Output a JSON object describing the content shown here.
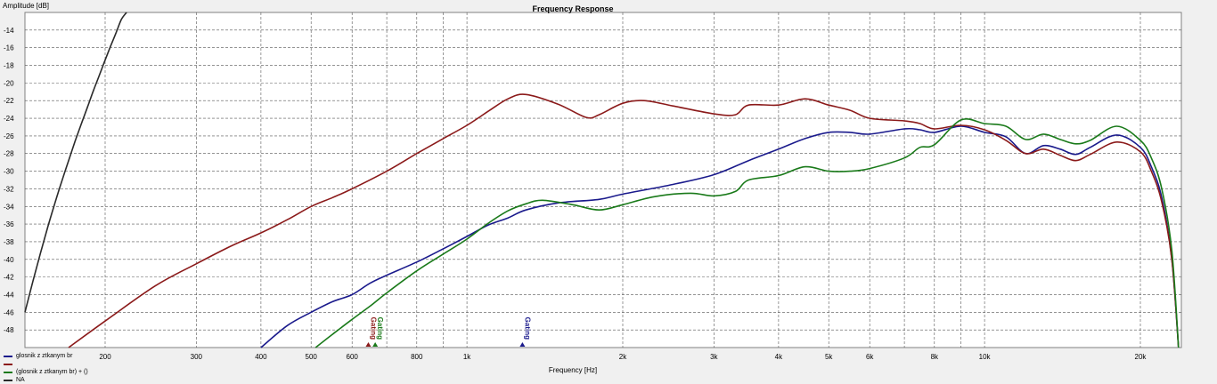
{
  "chart_data": {
    "type": "line",
    "title": "Frequency Response",
    "xlabel": "Frequency [Hz]",
    "ylabel": "Amplitude [dB]",
    "xscale": "log",
    "xlim": [
      140,
      24000
    ],
    "ylim": [
      -50,
      -12
    ],
    "grid": true,
    "y_ticks": [
      -14,
      -16,
      -18,
      -20,
      -22,
      -24,
      -26,
      -28,
      -30,
      -32,
      -34,
      -36,
      -38,
      -40,
      -42,
      -44,
      -46,
      -48
    ],
    "x_ticks": [
      {
        "value": 200,
        "label": "200"
      },
      {
        "value": 300,
        "label": "300"
      },
      {
        "value": 400,
        "label": "400"
      },
      {
        "value": 500,
        "label": "500"
      },
      {
        "value": 600,
        "label": "600"
      },
      {
        "value": 800,
        "label": "800"
      },
      {
        "value": 1000,
        "label": "1k"
      },
      {
        "value": 2000,
        "label": "2k"
      },
      {
        "value": 3000,
        "label": "3k"
      },
      {
        "value": 4000,
        "label": "4k"
      },
      {
        "value": 5000,
        "label": "5k"
      },
      {
        "value": 6000,
        "label": "6k"
      },
      {
        "value": 8000,
        "label": "8k"
      },
      {
        "value": 10000,
        "label": "10k"
      },
      {
        "value": 20000,
        "label": "20k"
      }
    ],
    "minor_x_grid": [
      700,
      900,
      7000,
      9000
    ],
    "series": [
      {
        "name": "glosnik z ztkanym br",
        "color": "#1a1a8c",
        "points": [
          [
            400,
            -50
          ],
          [
            450,
            -47.5
          ],
          [
            500,
            -46
          ],
          [
            550,
            -44.8
          ],
          [
            600,
            -44
          ],
          [
            650,
            -42.7
          ],
          [
            700,
            -41.8
          ],
          [
            800,
            -40.3
          ],
          [
            900,
            -38.8
          ],
          [
            1000,
            -37.4
          ],
          [
            1100,
            -36.1
          ],
          [
            1200,
            -35.3
          ],
          [
            1300,
            -34.4
          ],
          [
            1500,
            -33.6
          ],
          [
            1800,
            -33.2
          ],
          [
            2000,
            -32.6
          ],
          [
            2500,
            -31.5
          ],
          [
            3000,
            -30.4
          ],
          [
            3500,
            -28.8
          ],
          [
            4000,
            -27.5
          ],
          [
            4500,
            -26.3
          ],
          [
            5000,
            -25.6
          ],
          [
            5500,
            -25.6
          ],
          [
            6000,
            -25.8
          ],
          [
            7000,
            -25.2
          ],
          [
            7500,
            -25.3
          ],
          [
            8000,
            -25.6
          ],
          [
            9000,
            -24.9
          ],
          [
            10000,
            -25.6
          ],
          [
            11000,
            -26.1
          ],
          [
            12000,
            -28
          ],
          [
            13000,
            -27.1
          ],
          [
            14000,
            -27.5
          ],
          [
            15000,
            -28.1
          ],
          [
            16000,
            -27.3
          ],
          [
            18000,
            -25.9
          ],
          [
            20000,
            -27.3
          ],
          [
            21000,
            -29.5
          ],
          [
            22000,
            -33
          ],
          [
            23000,
            -40
          ],
          [
            23700,
            -50
          ]
        ]
      },
      {
        "name": "",
        "color": "#8b1a1a",
        "points": [
          [
            170,
            -50
          ],
          [
            200,
            -47
          ],
          [
            250,
            -43
          ],
          [
            300,
            -40.5
          ],
          [
            350,
            -38.5
          ],
          [
            400,
            -37
          ],
          [
            450,
            -35.5
          ],
          [
            500,
            -34
          ],
          [
            550,
            -33
          ],
          [
            600,
            -32
          ],
          [
            700,
            -30
          ],
          [
            800,
            -28
          ],
          [
            900,
            -26.3
          ],
          [
            1000,
            -24.8
          ],
          [
            1100,
            -23.2
          ],
          [
            1200,
            -21.8
          ],
          [
            1300,
            -21.3
          ],
          [
            1500,
            -22.4
          ],
          [
            1700,
            -23.9
          ],
          [
            1800,
            -23.6
          ],
          [
            2000,
            -22.3
          ],
          [
            2200,
            -22
          ],
          [
            2500,
            -22.6
          ],
          [
            3000,
            -23.5
          ],
          [
            3300,
            -23.6
          ],
          [
            3500,
            -22.5
          ],
          [
            4000,
            -22.5
          ],
          [
            4500,
            -21.8
          ],
          [
            5000,
            -22.5
          ],
          [
            5500,
            -23.1
          ],
          [
            6000,
            -24
          ],
          [
            7000,
            -24.3
          ],
          [
            7500,
            -24.6
          ],
          [
            8000,
            -25.2
          ],
          [
            9000,
            -24.8
          ],
          [
            10000,
            -25.3
          ],
          [
            11000,
            -26.5
          ],
          [
            12000,
            -28
          ],
          [
            13000,
            -27.5
          ],
          [
            14000,
            -28.2
          ],
          [
            15000,
            -28.8
          ],
          [
            16000,
            -28.1
          ],
          [
            18000,
            -26.7
          ],
          [
            20000,
            -27.8
          ],
          [
            21000,
            -30
          ],
          [
            22000,
            -33.5
          ],
          [
            23000,
            -40
          ],
          [
            23700,
            -50
          ]
        ]
      },
      {
        "name": "(glosnik z ztkanym br) + ()",
        "color": "#1a7a1a",
        "points": [
          [
            510,
            -50
          ],
          [
            550,
            -48.5
          ],
          [
            600,
            -46.8
          ],
          [
            650,
            -45.3
          ],
          [
            700,
            -43.8
          ],
          [
            800,
            -41.3
          ],
          [
            900,
            -39.4
          ],
          [
            1000,
            -37.7
          ],
          [
            1100,
            -35.9
          ],
          [
            1200,
            -34.5
          ],
          [
            1300,
            -33.7
          ],
          [
            1400,
            -33.3
          ],
          [
            1600,
            -33.8
          ],
          [
            1800,
            -34.4
          ],
          [
            2000,
            -33.8
          ],
          [
            2300,
            -32.9
          ],
          [
            2700,
            -32.5
          ],
          [
            3000,
            -32.8
          ],
          [
            3300,
            -32.3
          ],
          [
            3500,
            -31
          ],
          [
            4000,
            -30.5
          ],
          [
            4500,
            -29.5
          ],
          [
            5000,
            -30
          ],
          [
            5500,
            -30
          ],
          [
            6000,
            -29.7
          ],
          [
            7000,
            -28.5
          ],
          [
            7500,
            -27.3
          ],
          [
            8000,
            -27
          ],
          [
            9000,
            -24.2
          ],
          [
            10000,
            -24.6
          ],
          [
            11000,
            -24.9
          ],
          [
            12000,
            -26.4
          ],
          [
            13000,
            -25.8
          ],
          [
            14000,
            -26.4
          ],
          [
            15000,
            -26.9
          ],
          [
            16000,
            -26.5
          ],
          [
            18000,
            -24.9
          ],
          [
            20000,
            -26.5
          ],
          [
            21000,
            -28.5
          ],
          [
            22000,
            -32
          ],
          [
            23000,
            -39
          ],
          [
            23700,
            -50
          ]
        ]
      },
      {
        "name": "NA",
        "color": "#2a2a2a",
        "points": [
          [
            140,
            -46
          ],
          [
            145,
            -42.5
          ],
          [
            150,
            -39.3
          ],
          [
            155,
            -36.3
          ],
          [
            160,
            -33.6
          ],
          [
            165,
            -31.1
          ],
          [
            170,
            -28.8
          ],
          [
            175,
            -26.6
          ],
          [
            180,
            -24.6
          ],
          [
            185,
            -22.7
          ],
          [
            190,
            -20.8
          ],
          [
            195,
            -19.1
          ],
          [
            200,
            -17.4
          ],
          [
            205,
            -15.8
          ],
          [
            210,
            -14.3
          ],
          [
            215,
            -12.8
          ],
          [
            220,
            -11.4
          ]
        ]
      }
    ],
    "markers": [
      {
        "freq": 645,
        "label": "Gating",
        "color": "#8b1a1a"
      },
      {
        "freq": 665,
        "label": "Gating",
        "color": "#1a7a1a"
      },
      {
        "freq": 1280,
        "label": "Gating",
        "color": "#1a1a8c"
      }
    ]
  }
}
